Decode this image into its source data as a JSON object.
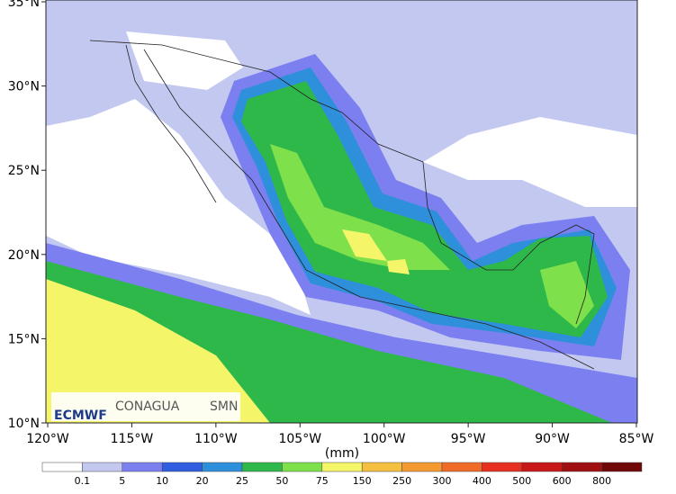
{
  "map": {
    "xlim": [
      -120,
      -85
    ],
    "ylim": [
      10,
      35
    ],
    "xticks": [
      {
        "value": -120,
        "label": "120°W"
      },
      {
        "value": -115,
        "label": "115°W"
      },
      {
        "value": -110,
        "label": "110°W"
      },
      {
        "value": -105,
        "label": "105°W"
      },
      {
        "value": -100,
        "label": "100°W"
      },
      {
        "value": -95,
        "label": "95°W"
      },
      {
        "value": -90,
        "label": "90°W"
      },
      {
        "value": -85,
        "label": "85°W"
      }
    ],
    "yticks": [
      {
        "value": 10,
        "label": "10°N"
      },
      {
        "value": 15,
        "label": "15°N"
      },
      {
        "value": 20,
        "label": "20°N"
      },
      {
        "value": 25,
        "label": "25°N"
      },
      {
        "value": 30,
        "label": "30°N"
      },
      {
        "value": 35,
        "label": "35°N"
      }
    ],
    "logos": [
      "ECMWF",
      "CONAGUA",
      "SMN"
    ],
    "colorbar": {
      "units": "(mm)",
      "levels": [
        0.1,
        5,
        10,
        20,
        25,
        50,
        75,
        150,
        250,
        300,
        400,
        500,
        600,
        800
      ],
      "colors": [
        "#ffffff",
        "#c3c8f0",
        "#7c7ff0",
        "#2f5fe0",
        "#2e8fdb",
        "#2fb84a",
        "#7ee04a",
        "#f5f56a",
        "#f5c040",
        "#f59a30",
        "#f06a28",
        "#e83020",
        "#c81818",
        "#a01010",
        "#700808"
      ]
    }
  }
}
